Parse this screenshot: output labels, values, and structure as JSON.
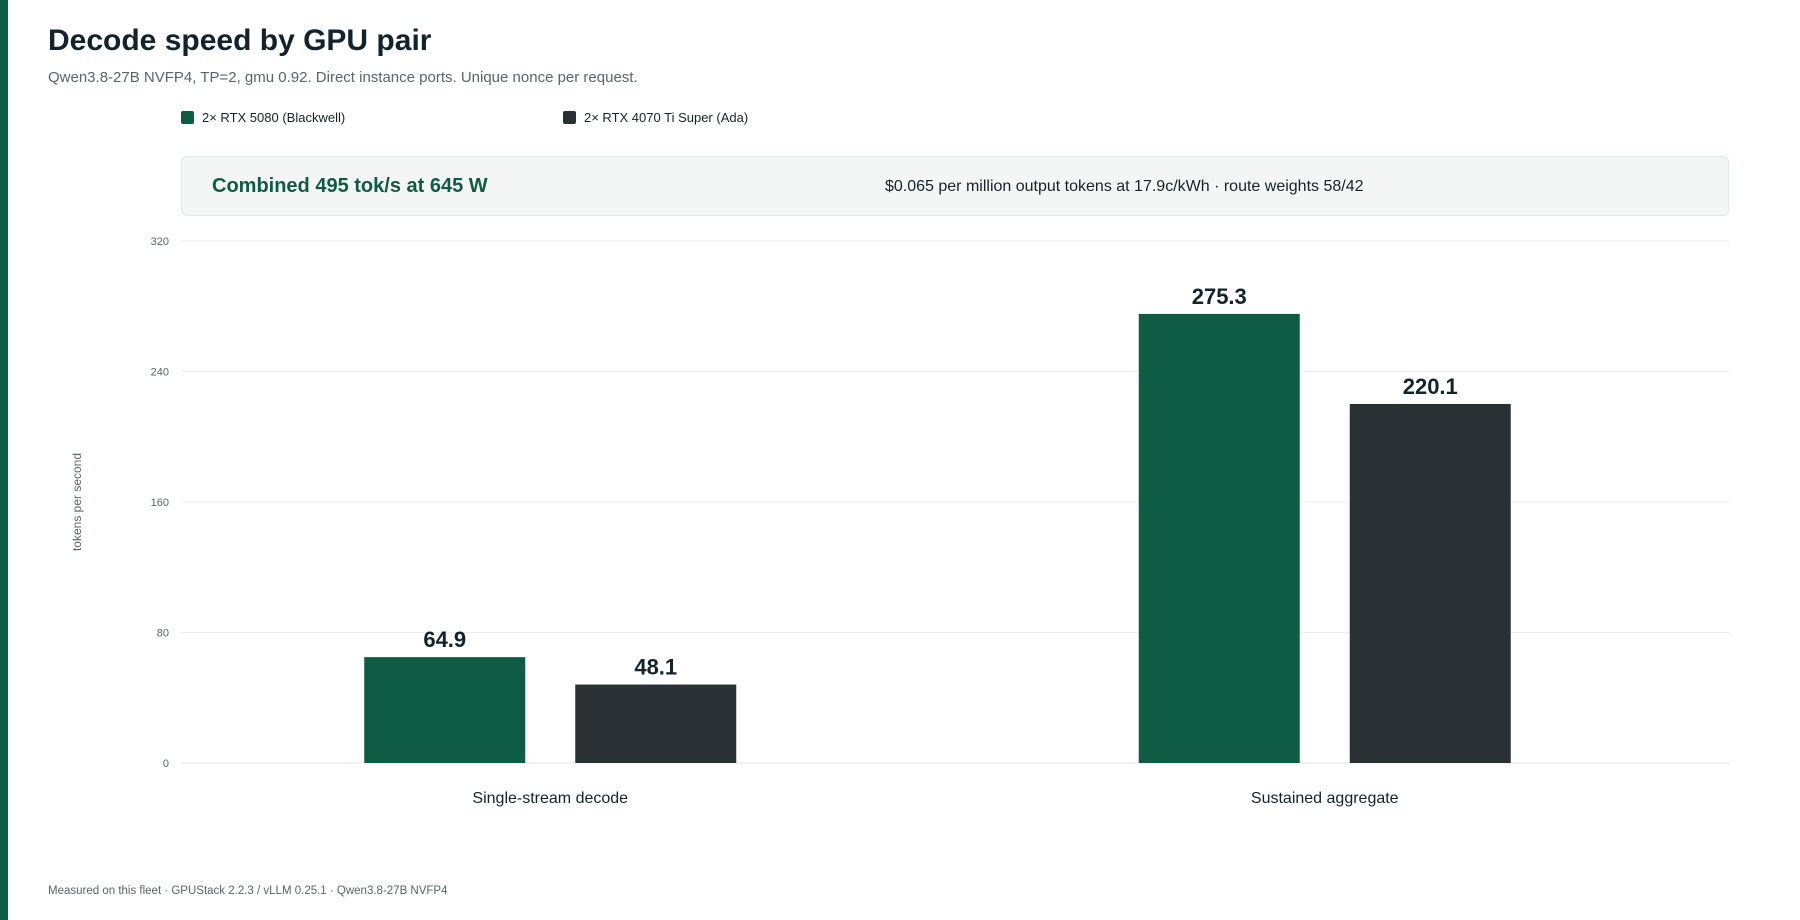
{
  "page": {
    "title": "Decode speed by GPU pair",
    "subtitle": "Qwen3.8-27B NVFP4, TP=2, gmu 0.92. Direct instance ports. Unique nonce per request.",
    "accent_color": "#0f5c45",
    "footer": "Measured on this fleet · GPUStack 2.2.3 / vLLM 0.25.1 · Qwen3.8-27B NVFP4"
  },
  "summary": {
    "headline": "Combined 495 tok/s at 645 W",
    "detail": "$0.065 per million output tokens at 17.9c/kWh · route weights 58/42"
  },
  "chart_data": {
    "type": "bar",
    "categories": [
      "Single-stream decode",
      "Sustained aggregate"
    ],
    "series": [
      {
        "name": "2× RTX 5080 (Blackwell)",
        "values": [
          64.9,
          275.3
        ],
        "color": "#0f5c45"
      },
      {
        "name": "2× RTX 4070 Ti Super (Ada)",
        "values": [
          48.1,
          220.1
        ],
        "color": "#2a3134"
      }
    ],
    "title": "",
    "xlabel": "",
    "ylabel": "tokens per second",
    "ylim": [
      0,
      320
    ],
    "yticks": [
      0,
      80,
      160,
      240,
      320
    ],
    "grid": true,
    "legend_position": "top-left",
    "data_labels": true
  }
}
